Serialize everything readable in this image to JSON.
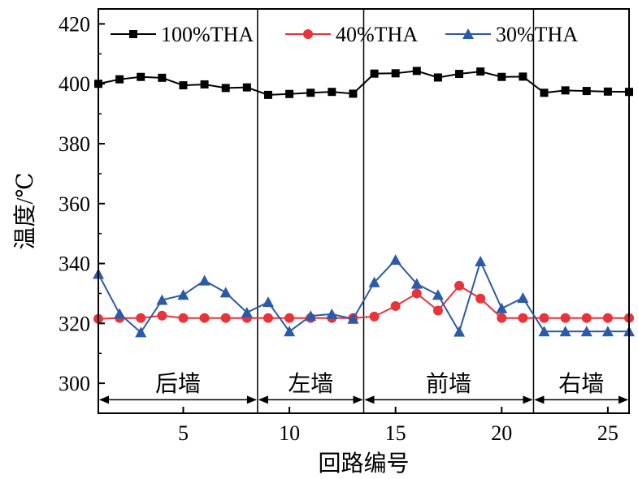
{
  "chart_data": {
    "type": "line",
    "title": "",
    "xlabel": "回路编号",
    "ylabel": "温度/℃",
    "xlim": [
      1,
      26
    ],
    "ylim": [
      290,
      425
    ],
    "xticks": [
      5,
      10,
      15,
      20,
      25
    ],
    "yticks": [
      300,
      320,
      340,
      360,
      380,
      400,
      420
    ],
    "x": [
      1,
      2,
      3,
      4,
      5,
      6,
      7,
      8,
      9,
      10,
      11,
      12,
      13,
      14,
      15,
      16,
      17,
      18,
      19,
      20,
      21,
      22,
      23,
      24,
      25,
      26
    ],
    "series": [
      {
        "name": "100%THA",
        "color": "#000000",
        "marker": "square",
        "values": [
          400,
          401.5,
          402.3,
          402,
          399.5,
          399.8,
          398.6,
          398.8,
          396.3,
          396.6,
          397,
          397.3,
          396.7,
          403.4,
          403.5,
          404.3,
          402.1,
          403.3,
          404.1,
          402.3,
          402.4,
          397,
          397.8,
          397.6,
          397.4,
          397.3
        ]
      },
      {
        "name": "40%THA",
        "color": "#e8333a",
        "marker": "circle",
        "values": [
          321.5,
          321.8,
          321.8,
          322.6,
          321.8,
          321.8,
          321.8,
          321.8,
          321.8,
          321.8,
          321.8,
          321.8,
          321.8,
          322.3,
          325.8,
          330,
          324.3,
          332.6,
          328.3,
          321.8,
          321.8,
          321.8,
          321.8,
          321.8,
          321.8,
          321.8
        ]
      },
      {
        "name": "30%THA",
        "color": "#2b5aa6",
        "marker": "triangle",
        "values": [
          336.5,
          323.2,
          317,
          327.8,
          329.5,
          334.3,
          330.3,
          323.6,
          327.1,
          317.3,
          322.5,
          323.1,
          321.5,
          333.7,
          341.2,
          333.2,
          329.5,
          317.2,
          340.7,
          325,
          328.5,
          317.3,
          317.3,
          317.3,
          317.3,
          317.3
        ]
      }
    ],
    "dividers": [
      8.5,
      13.5,
      21.5
    ],
    "regions": [
      {
        "label": "后墙",
        "from": 1,
        "to": 8.5
      },
      {
        "label": "左墙",
        "from": 8.5,
        "to": 13.5
      },
      {
        "label": "前墙",
        "from": 13.5,
        "to": 21.5
      },
      {
        "label": "右墙",
        "from": 21.5,
        "to": 26
      }
    ],
    "legend_position": "top"
  }
}
